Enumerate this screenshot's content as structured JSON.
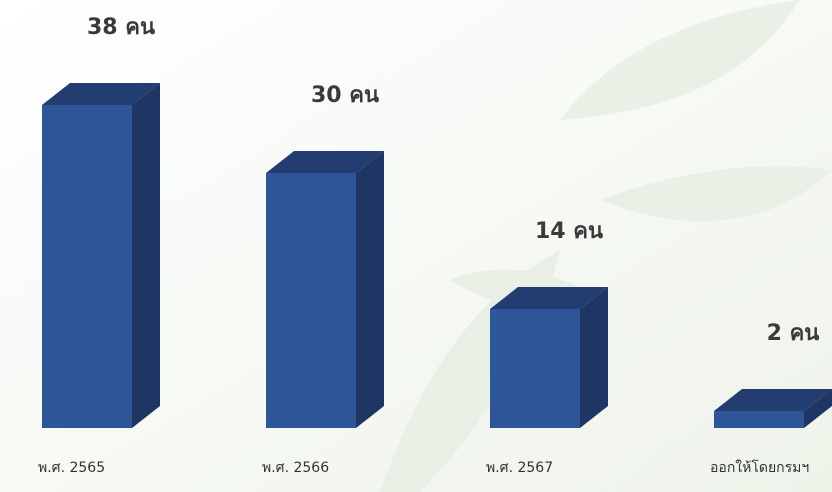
{
  "chart_data": {
    "type": "bar3d",
    "categories": [
      "พ.ศ. 2565",
      "พ.ศ. 2566",
      "พ.ศ. 2567",
      "ออกให้โดยกรมฯ"
    ],
    "values": [
      38,
      30,
      14,
      2
    ],
    "value_labels": [
      "38 คน",
      "30 คน",
      "14 คน",
      "2 คน"
    ],
    "color": "#2e5597"
  }
}
